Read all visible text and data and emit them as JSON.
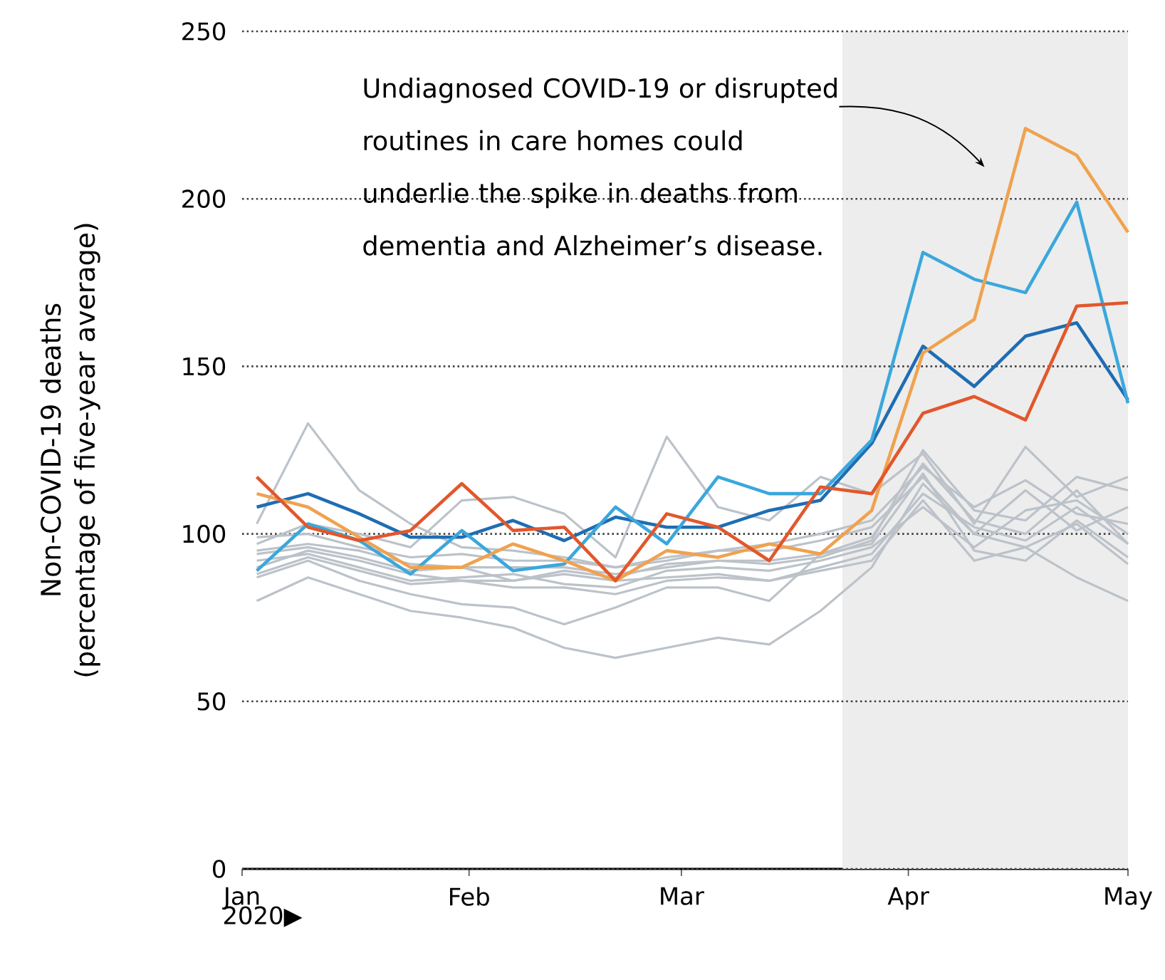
{
  "chart_data": {
    "type": "line",
    "ylabel": "Non-COVID-19 deaths (percentage of five-year average)",
    "xlabel": "2020▶",
    "x": [
      "2020-01-03",
      "2020-01-10",
      "2020-01-17",
      "2020-01-24",
      "2020-01-31",
      "2020-02-07",
      "2020-02-14",
      "2020-02-21",
      "2020-02-28",
      "2020-03-06",
      "2020-03-13",
      "2020-03-20",
      "2020-03-27",
      "2020-04-03",
      "2020-04-10",
      "2020-04-17",
      "2020-04-24",
      "2020-05-01"
    ],
    "series": [
      {
        "color": "#bcc2c9",
        "values": [
          103,
          133,
          113,
          103,
          96,
          95,
          93,
          90,
          92,
          95,
          97,
          100,
          104,
          120,
          108,
          116,
          106,
          103
        ]
      },
      {
        "color": "#bcc2c9",
        "values": [
          97,
          103,
          100,
          96,
          110,
          111,
          106,
          93,
          129,
          108,
          104,
          117,
          112,
          124,
          103,
          126,
          111,
          117
        ]
      },
      {
        "color": "#bcc2c9",
        "values": [
          80,
          87,
          82,
          77,
          75,
          72,
          66,
          63,
          66,
          69,
          67,
          77,
          90,
          115,
          100,
          96,
          87,
          80
        ]
      },
      {
        "color": "#bcc2c9",
        "values": [
          87,
          92,
          86,
          82,
          79,
          78,
          73,
          78,
          84,
          84,
          80,
          94,
          97,
          118,
          95,
          92,
          104,
          93
        ]
      },
      {
        "color": "#bcc2c9",
        "values": [
          90,
          95,
          92,
          88,
          86,
          86,
          88,
          86,
          87,
          88,
          86,
          90,
          94,
          112,
          102,
          98,
          108,
          97
        ]
      },
      {
        "color": "#bcc2c9",
        "values": [
          95,
          97,
          95,
          91,
          90,
          90,
          90,
          88,
          90,
          92,
          91,
          93,
          98,
          125,
          107,
          104,
          117,
          113
        ]
      },
      {
        "color": "#bcc2c9",
        "values": [
          92,
          94,
          90,
          86,
          87,
          88,
          85,
          84,
          89,
          90,
          89,
          92,
          96,
          108,
          96,
          107,
          110,
          100
        ]
      },
      {
        "color": "#bcc2c9",
        "values": [
          99,
          100,
          96,
          93,
          94,
          92,
          92,
          90,
          93,
          95,
          95,
          98,
          102,
          117,
          100,
          113,
          101,
          108
        ]
      },
      {
        "color": "#bcc2c9",
        "values": [
          94,
          96,
          93,
          89,
          90,
          86,
          89,
          87,
          91,
          92,
          92,
          94,
          99,
          121,
          104,
          100,
          113,
          97
        ]
      },
      {
        "color": "#bcc2c9",
        "values": [
          88,
          93,
          89,
          85,
          86,
          84,
          84,
          82,
          86,
          87,
          86,
          89,
          92,
          110,
          92,
          96,
          103,
          91
        ]
      },
      {
        "color": "#1f6db3",
        "values": [
          108,
          112,
          106,
          99,
          99,
          104,
          98,
          105,
          102,
          102,
          107,
          110,
          127,
          156,
          144,
          159,
          163,
          140
        ]
      },
      {
        "color": "#3ba7dc",
        "values": [
          89,
          103,
          98,
          88,
          101,
          89,
          91,
          108,
          97,
          117,
          112,
          112,
          128,
          184,
          176,
          172,
          199,
          139
        ]
      },
      {
        "color": "#f0a24f",
        "values": [
          112,
          108,
          99,
          90,
          90,
          97,
          92,
          86,
          95,
          93,
          97,
          94,
          107,
          154,
          164,
          221,
          213,
          190
        ]
      },
      {
        "color": "#e2572b",
        "values": [
          117,
          102,
          98,
          101,
          115,
          101,
          102,
          86,
          106,
          102,
          92,
          114,
          112,
          136,
          141,
          134,
          168,
          169
        ]
      }
    ],
    "xlim": [
      "2020-01-01",
      "2020-05-01"
    ],
    "xticks": [
      {
        "value": "2020-01-01",
        "label": "Jan"
      },
      {
        "value": "2020-02-01",
        "label": "Feb"
      },
      {
        "value": "2020-03-01",
        "label": "Mar"
      },
      {
        "value": "2020-04-01",
        "label": "Apr"
      },
      {
        "value": "2020-05-01",
        "label": "May"
      }
    ],
    "ylim": [
      0,
      250
    ],
    "yticks": [
      0,
      50,
      100,
      150,
      200,
      250
    ],
    "grid": "y",
    "marker": "none",
    "line_style": "solid",
    "bands": [
      {
        "axis": "x",
        "from": "2020-03-23",
        "to": "2020-05-01",
        "color": "#ededed"
      }
    ],
    "annotations": [
      "Undiagnosed COVID-19 or disrupted routines in care homes could underlie the spike in deaths from dementia and Alzheimer’s disease."
    ]
  }
}
